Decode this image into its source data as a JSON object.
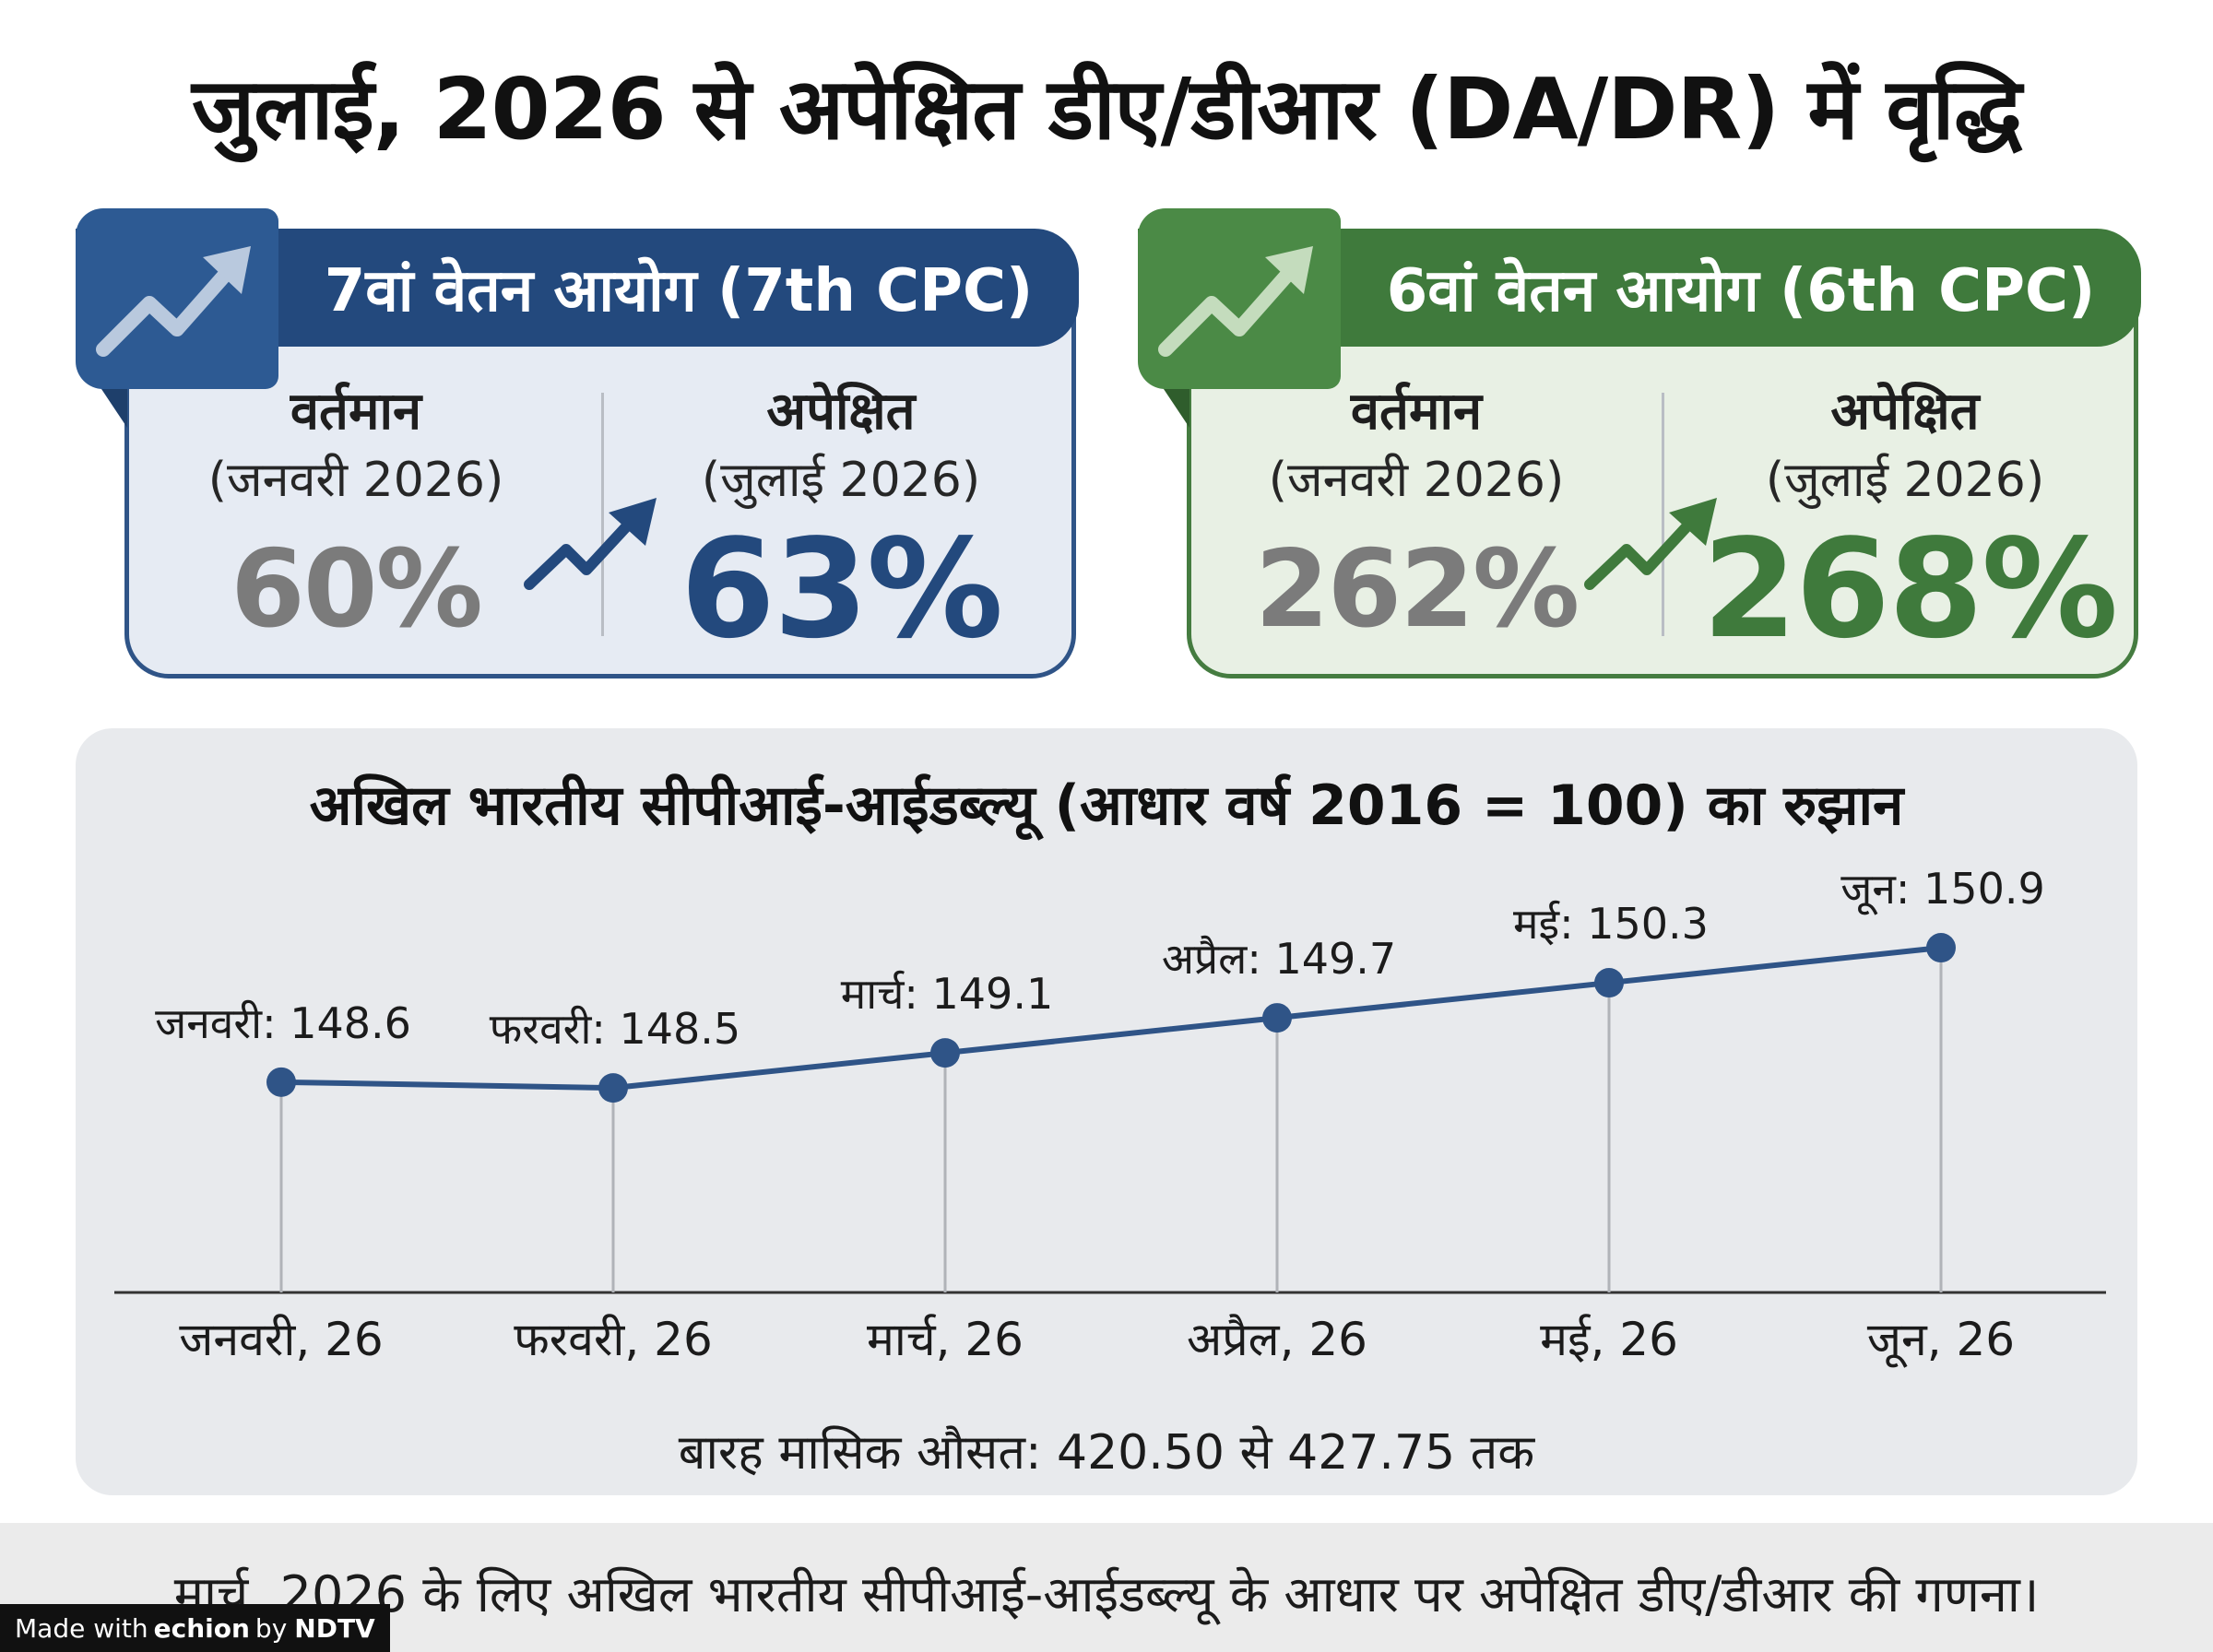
{
  "title": "जुलाई, 2026 से अपेक्षित डीए/डीआर (DA/DR) में वृद्धि",
  "cards": [
    {
      "heading": "7वां वेतन आयोग (7th CPC)",
      "current_label": "वर्तमान",
      "current_period": "(जनवरी 2026)",
      "current_value": "60%",
      "expected_label": "अपेक्षित",
      "expected_period": "(जुलाई 2026)",
      "expected_value": "63%",
      "icon": "trending-up-icon",
      "accent": "#23497d"
    },
    {
      "heading": "6वां वेतन आयोग (6th CPC)",
      "current_label": "वर्तमान",
      "current_period": "(जनवरी 2026)",
      "current_value": "262%",
      "expected_label": "अपेक्षित",
      "expected_period": "(जुलाई 2026)",
      "expected_value": "268%",
      "icon": "trending-up-icon",
      "accent": "#3f7a3c"
    }
  ],
  "chart_data": {
    "type": "line",
    "title": "अखिल भारतीय सीपीआई-आईडब्ल्यू (आधार वर्ष 2016 = 100) का रुझान",
    "categories": [
      "जनवरी, 26",
      "फरवरी, 26",
      "मार्च, 26",
      "अप्रैल, 26",
      "मई, 26",
      "जून, 26"
    ],
    "point_labels": [
      "जनवरी: 148.6",
      "फरवरी: 148.5",
      "मार्च: 149.1",
      "अप्रैल: 149.7",
      "मई: 150.3",
      "जून: 150.9"
    ],
    "values": [
      148.6,
      148.5,
      149.1,
      149.7,
      150.3,
      150.9
    ],
    "ylim": [
      145.0,
      151.5
    ],
    "grid": false,
    "line_color": "#2f5487",
    "note": "बारह मासिक औसत: 420.50 से 427.75 तक"
  },
  "footer": {
    "note": "मार्च, 2026 के लिए अखिल भारतीय सीपीआई-आईडब्ल्यू के आधार पर अपेक्षित डीए/डीआर की गणना।",
    "credit_prefix": "Made with",
    "credit_brand": "echion",
    "credit_by": "by",
    "credit_ndtv": "NDTV"
  }
}
